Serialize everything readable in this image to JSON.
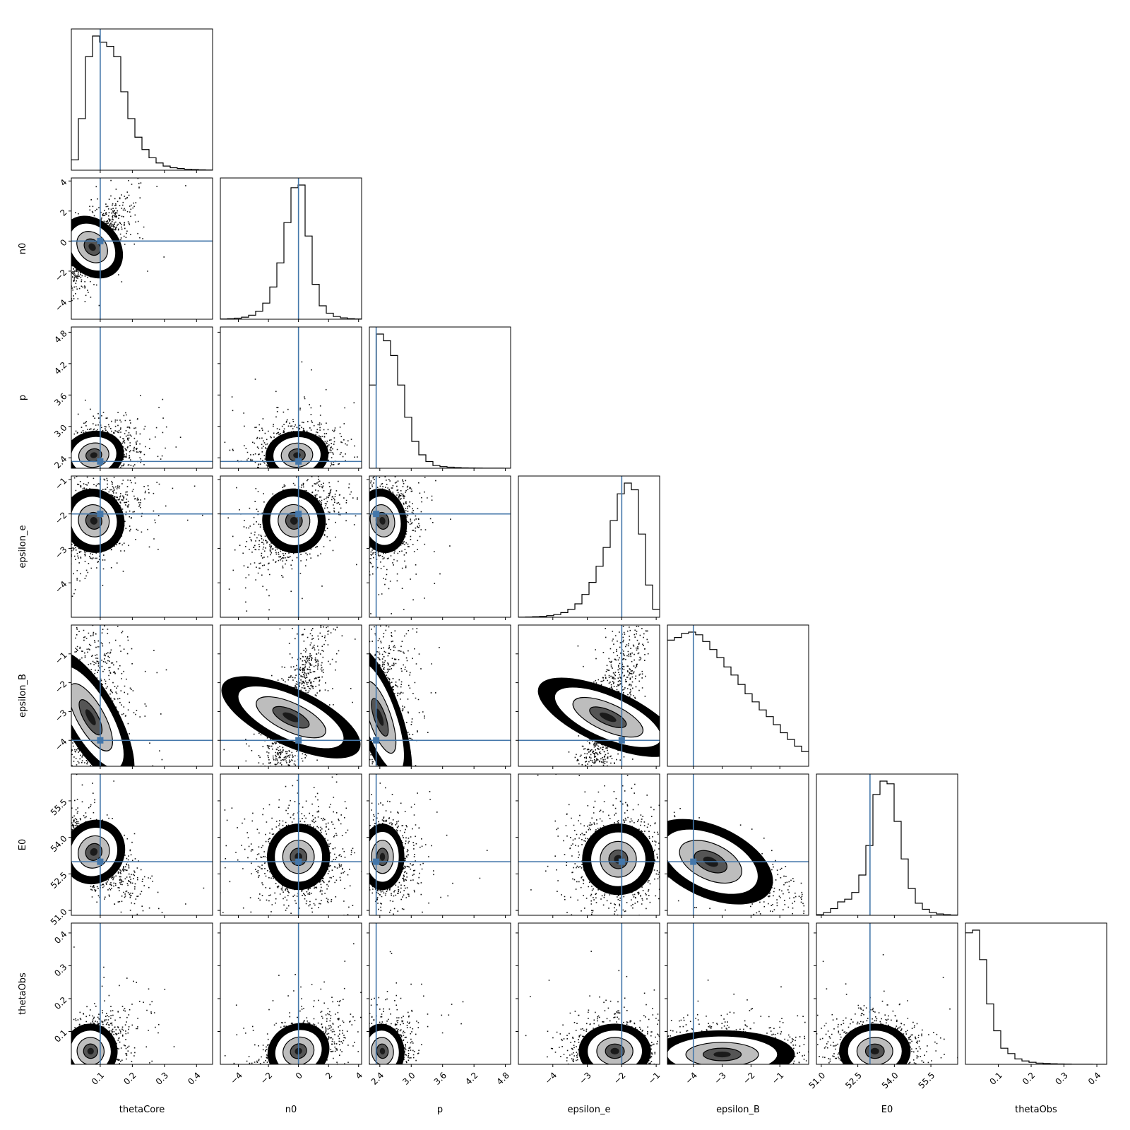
{
  "chart_data": {
    "type": "corner",
    "parameters": [
      {
        "name": "thetaCore",
        "label": "thetaCore",
        "range": [
          0.01,
          0.45
        ],
        "ticks": [
          0.1,
          0.2,
          0.3,
          0.4
        ],
        "tick_labels": [
          "0.1",
          "0.2",
          "0.3",
          "0.4"
        ],
        "truth": 0.1
      },
      {
        "name": "n0",
        "label": "n0",
        "range": [
          -5.2,
          4.2
        ],
        "ticks": [
          -4,
          -2,
          0,
          2,
          4
        ],
        "tick_labels": [
          "−4",
          "−2",
          "0",
          "2",
          "4"
        ],
        "truth": 0.0
      },
      {
        "name": "p",
        "label": "p",
        "range": [
          2.2,
          4.9
        ],
        "ticks": [
          2.4,
          3.0,
          3.6,
          4.2,
          4.8
        ],
        "tick_labels": [
          "2.4",
          "3.0",
          "3.6",
          "4.2",
          "4.8"
        ],
        "truth": 2.33
      },
      {
        "name": "epsilon_e",
        "label": "epsilon_e",
        "range": [
          -5.0,
          -0.9
        ],
        "ticks": [
          -4,
          -3,
          -2,
          -1
        ],
        "tick_labels": [
          "−4",
          "−3",
          "−2",
          "−1"
        ],
        "truth": -2.0
      },
      {
        "name": "epsilon_B",
        "label": "epsilon_B",
        "range": [
          -4.9,
          0.0
        ],
        "ticks": [
          -4,
          -3,
          -2,
          -1
        ],
        "tick_labels": [
          "−4",
          "−3",
          "−2",
          "−1"
        ],
        "truth": -4.0
      },
      {
        "name": "E0",
        "label": "E0",
        "range": [
          50.8,
          56.6
        ],
        "ticks": [
          51.0,
          52.5,
          54.0,
          55.5
        ],
        "tick_labels": [
          "51.0",
          "52.5",
          "54.0",
          "55.5"
        ],
        "truth": 53.0
      },
      {
        "name": "thetaObs",
        "label": "thetaObs",
        "range": [
          0.0,
          0.43
        ],
        "ticks": [
          0.1,
          0.2,
          0.3,
          0.4
        ],
        "tick_labels": [
          "0.1",
          "0.2",
          "0.3",
          "0.4"
        ],
        "truth": null
      }
    ],
    "histograms": [
      [
        0.05,
        0.25,
        0.55,
        0.65,
        0.62,
        0.6,
        0.55,
        0.38,
        0.25,
        0.16,
        0.1,
        0.06,
        0.035,
        0.02,
        0.012,
        0.008,
        0.005,
        0.003,
        0.002,
        0.001
      ],
      [
        0.002,
        0.004,
        0.008,
        0.015,
        0.03,
        0.06,
        0.12,
        0.24,
        0.42,
        0.72,
        0.98,
        1.0,
        0.62,
        0.26,
        0.1,
        0.045,
        0.02,
        0.01,
        0.004,
        0.002
      ],
      [
        0.62,
        1.0,
        0.95,
        0.84,
        0.62,
        0.38,
        0.2,
        0.1,
        0.05,
        0.02,
        0.012,
        0.008,
        0.005,
        0.003,
        0.002,
        0.0015,
        0.001,
        0.0007,
        0.0005,
        0.0003
      ],
      [
        0.001,
        0.002,
        0.004,
        0.006,
        0.012,
        0.02,
        0.035,
        0.06,
        0.1,
        0.17,
        0.26,
        0.38,
        0.52,
        0.72,
        0.92,
        1.0,
        0.95,
        0.62,
        0.24,
        0.06
      ],
      [
        0.94,
        0.96,
        0.99,
        1.0,
        0.98,
        0.93,
        0.87,
        0.81,
        0.74,
        0.68,
        0.61,
        0.54,
        0.48,
        0.42,
        0.37,
        0.31,
        0.25,
        0.2,
        0.15,
        0.11
      ],
      [
        0.005,
        0.02,
        0.05,
        0.1,
        0.12,
        0.17,
        0.3,
        0.52,
        0.9,
        1.0,
        0.98,
        0.7,
        0.42,
        0.2,
        0.09,
        0.045,
        0.02,
        0.01,
        0.005,
        0.002
      ],
      [
        0.98,
        1.0,
        0.78,
        0.45,
        0.25,
        0.12,
        0.08,
        0.04,
        0.025,
        0.015,
        0.009,
        0.006,
        0.004,
        0.003,
        0.002,
        0.001,
        0.001,
        0.0005,
        0.0003,
        0.0002
      ]
    ],
    "grid": false,
    "legend": "none",
    "truth_color": "#4477aa"
  }
}
